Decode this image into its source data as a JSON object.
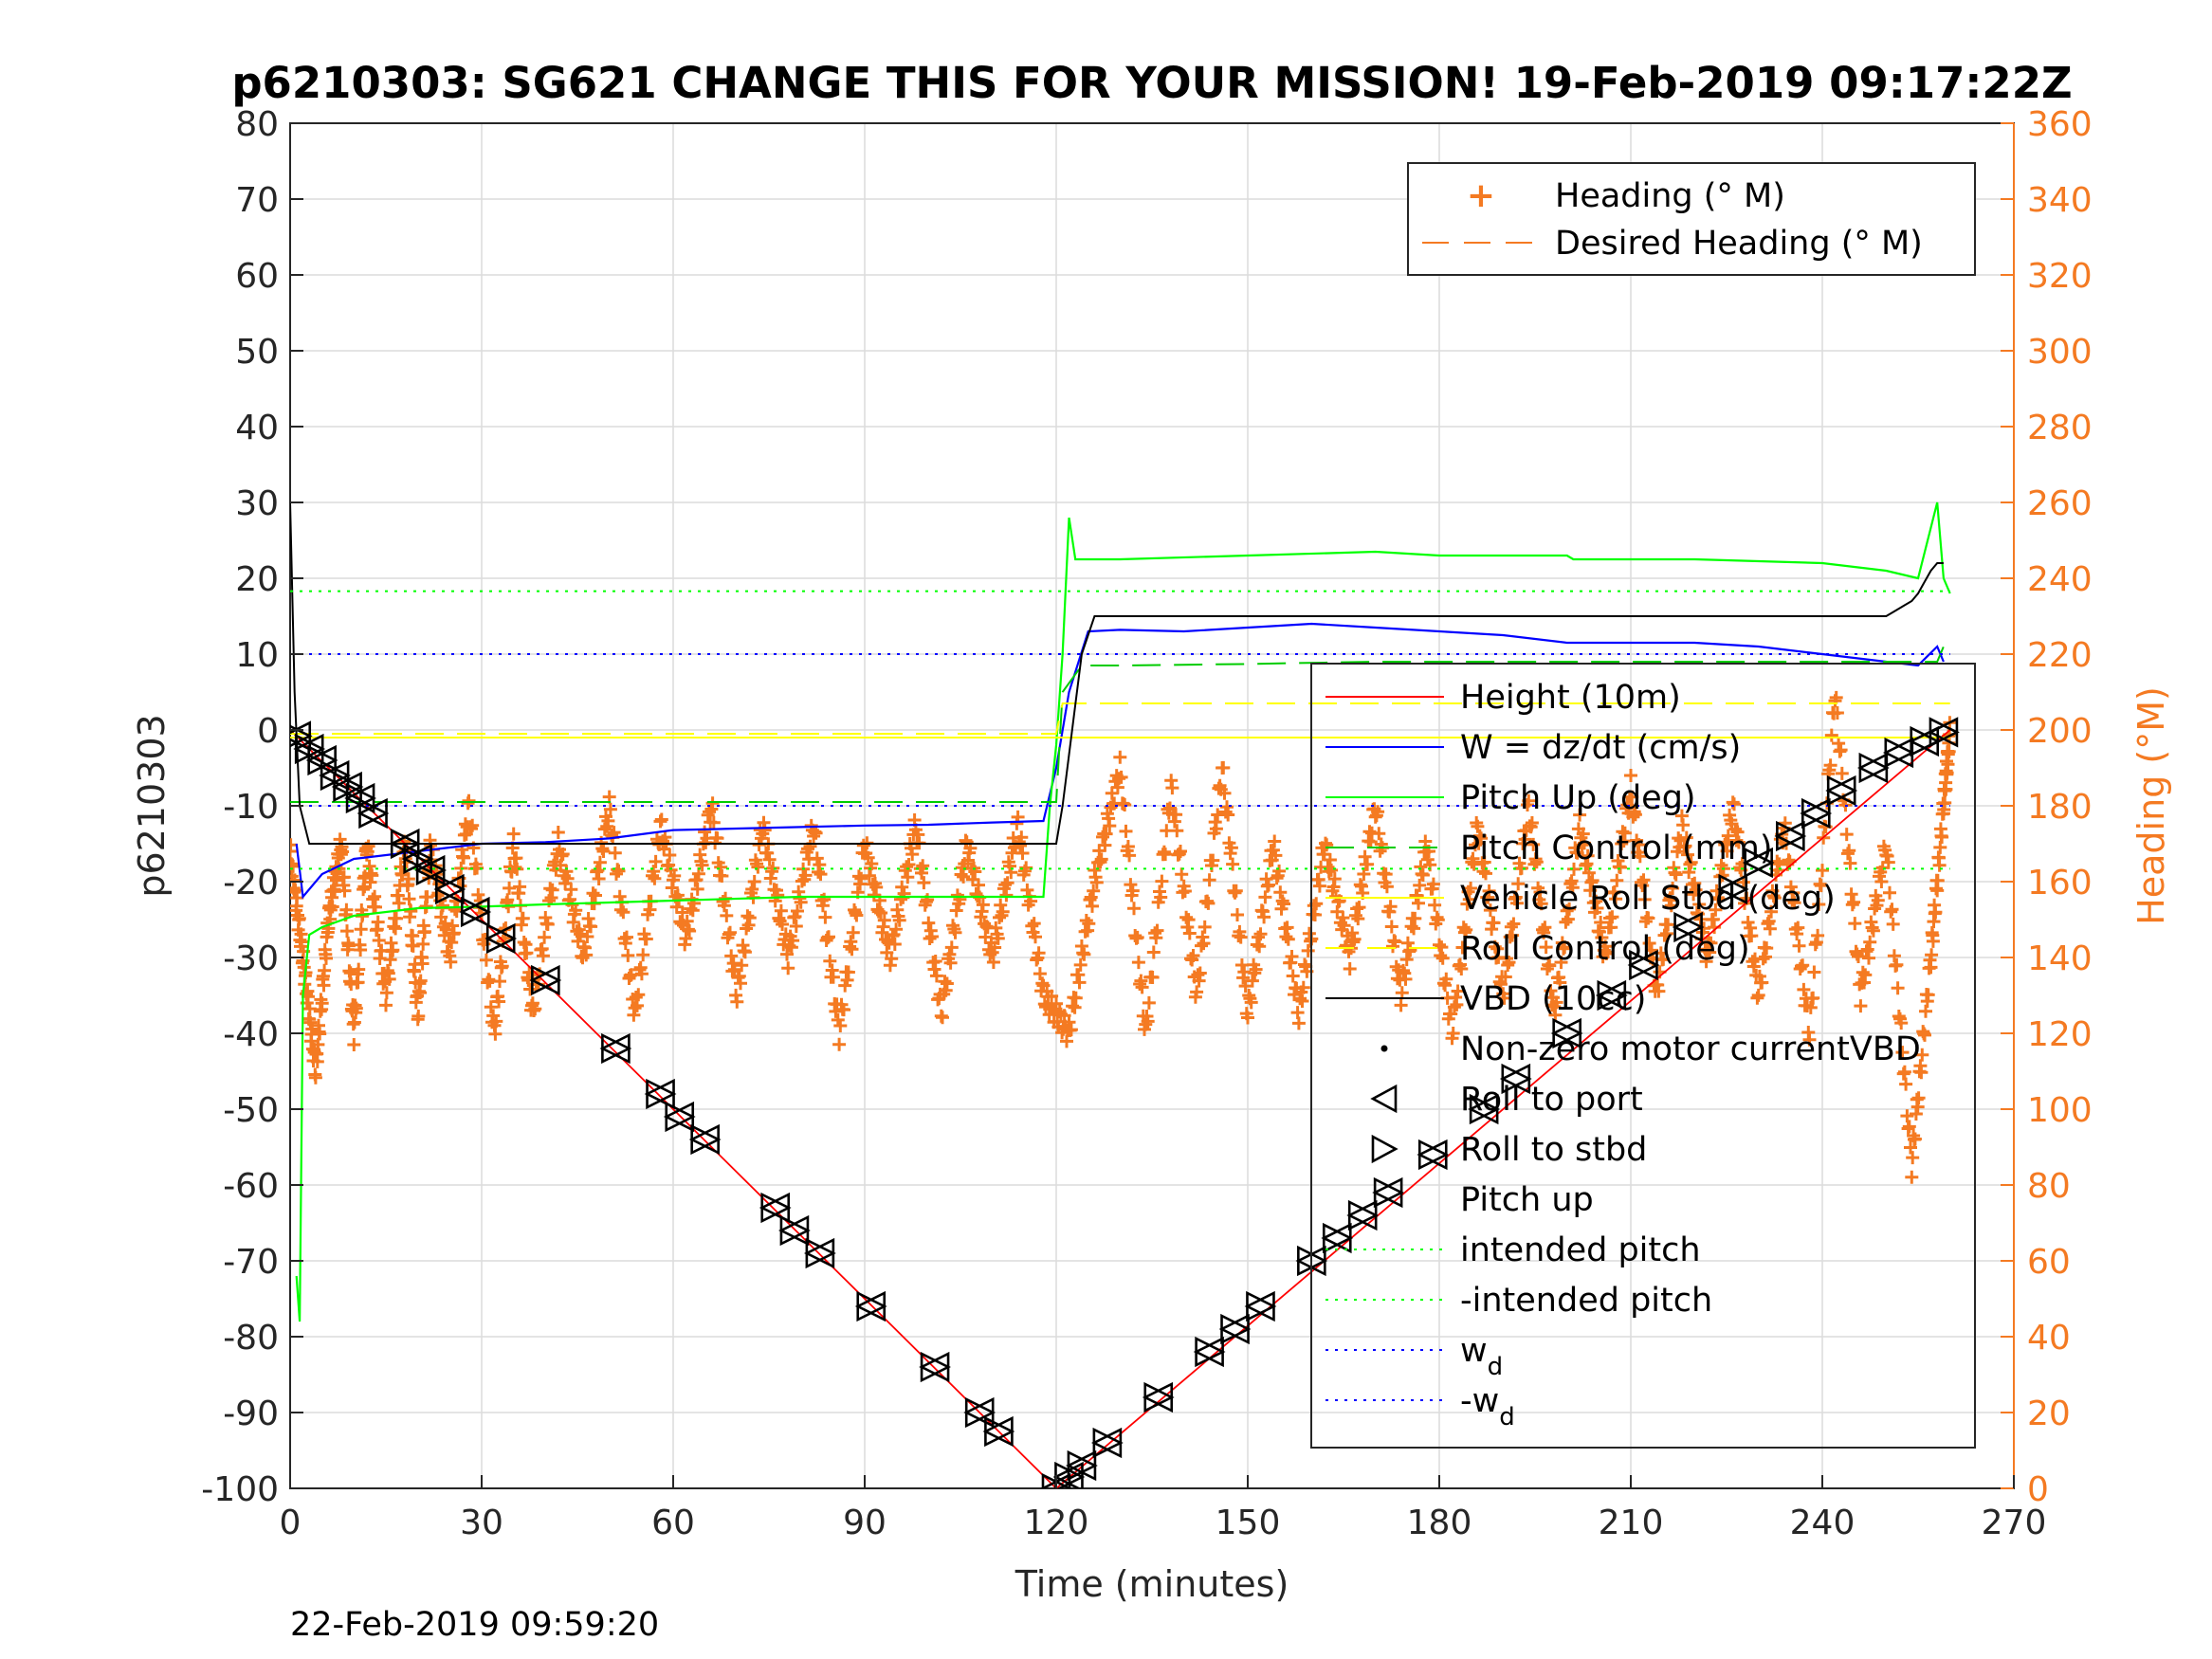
{
  "chart_data": {
    "type": "line",
    "title": "p6210303: SG621 CHANGE THIS FOR YOUR MISSION! 19-Feb-2019 09:17:22Z",
    "xlabel": "Time (minutes)",
    "ylabel": "p6210303",
    "y2label": "Heading (°M)",
    "footer": "22-Feb-2019 09:59:20",
    "xlim": [
      0,
      270
    ],
    "ylim": [
      -100,
      80
    ],
    "y2lim": [
      0,
      360
    ],
    "xticks": [
      "0",
      "30",
      "60",
      "90",
      "120",
      "150",
      "180",
      "210",
      "240",
      "270"
    ],
    "yticks": [
      "80",
      "70",
      "60",
      "50",
      "40",
      "30",
      "20",
      "10",
      "0",
      "-10",
      "-20",
      "-30",
      "-40",
      "-50",
      "-60",
      "-70",
      "-80",
      "-90",
      "-100"
    ],
    "y2ticks": [
      "360",
      "340",
      "320",
      "300",
      "280",
      "260",
      "240",
      "220",
      "200",
      "180",
      "160",
      "140",
      "120",
      "100",
      "80",
      "60",
      "40",
      "20",
      "0"
    ],
    "grid": true,
    "colors": {
      "height": "#ff0000",
      "w": "#0000ff",
      "pitch_up": "#00ff00",
      "pitch_control": "#00cc00",
      "roll": "#ffff00",
      "vbd": "#000000",
      "heading": "#f47a22",
      "intended_pitch": "#00ff00",
      "wd": "#0000ff"
    },
    "legend_right_axis": {
      "position": "top-right",
      "entries": [
        "Heading (° M)",
        "Desired Heading (° M)"
      ]
    },
    "legend_left_axis": {
      "position": "center-right",
      "entries": [
        "Height (10m)",
        "W = dz/dt (cm/s)",
        "Pitch Up (deg)",
        "Pitch Control (mm)",
        "Vehicle Roll Stbd (deg)",
        "Roll Control (deg)",
        "VBD (10cc)",
        "Non-zero motor currentVBD",
        "Roll to port",
        "Roll to stbd",
        "Pitch up",
        "intended pitch",
        "-intended pitch",
        "w",
        "-w"
      ],
      "subscript": "d"
    },
    "series": [
      {
        "name": "Height (10m)",
        "x": [
          0,
          120,
          260
        ],
        "values": [
          0,
          -100,
          0
        ]
      },
      {
        "name": "W = dz/dt (cm/s)",
        "x": [
          1,
          2,
          5,
          10,
          20,
          30,
          40,
          50,
          60,
          70,
          80,
          90,
          100,
          110,
          118,
          120,
          122,
          125,
          130,
          140,
          150,
          160,
          170,
          180,
          190,
          200,
          210,
          220,
          230,
          240,
          250,
          255,
          258,
          259
        ],
        "values": [
          -15,
          -22,
          -19,
          -17,
          -16,
          -15,
          -14.8,
          -14.3,
          -13.2,
          -13,
          -12.8,
          -12.6,
          -12.5,
          -12.2,
          -12,
          -5,
          5,
          13,
          13.2,
          13,
          13.5,
          14,
          13.5,
          13,
          12.5,
          11.5,
          11.5,
          11.5,
          11,
          10,
          9,
          8.5,
          11,
          9
        ]
      },
      {
        "name": "Pitch Up (deg)",
        "x": [
          1,
          1.5,
          2,
          3,
          5,
          10,
          20,
          30,
          40,
          60,
          80,
          100,
          118,
          119,
          120,
          121,
          122,
          123,
          130,
          150,
          170,
          180,
          200,
          201,
          220,
          240,
          250,
          255,
          258,
          259,
          260
        ],
        "values": [
          -72,
          -78,
          -35,
          -27,
          -26,
          -24.5,
          -23.5,
          -23.3,
          -23,
          -22.5,
          -22,
          -22,
          -22,
          -10,
          -2,
          10,
          28,
          22.5,
          22.5,
          23,
          23.5,
          23,
          23,
          22.5,
          22.5,
          22,
          21,
          20,
          30,
          20,
          18
        ]
      },
      {
        "name": "Pitch Control (mm)",
        "x": [
          0,
          120,
          121,
          124,
          130,
          150,
          170,
          200,
          230,
          250,
          258,
          259,
          260
        ],
        "values": [
          -9.5,
          -9.5,
          5,
          8.5,
          8.5,
          8.7,
          9,
          9,
          9,
          9,
          9,
          11,
          10
        ]
      },
      {
        "name": "Vehicle Roll Stbd (deg)",
        "x": [
          0,
          260
        ],
        "values": [
          -1,
          -1
        ]
      },
      {
        "name": "Roll Control (deg)",
        "x": [
          0,
          120,
          121,
          260
        ],
        "values": [
          -0.5,
          -0.5,
          3.5,
          3.5
        ]
      },
      {
        "name": "VBD (10cc)",
        "x": [
          0,
          0.7,
          1.5,
          3,
          120,
          121,
          124,
          126,
          250,
          251,
          252,
          253,
          254,
          255,
          256,
          257,
          258,
          259
        ],
        "values": [
          30,
          5,
          -10,
          -15,
          -15,
          -10,
          10,
          15,
          15,
          15.5,
          16,
          16.5,
          17,
          18,
          19.5,
          21,
          22,
          22
        ]
      },
      {
        "name": "intended pitch",
        "x": [
          0,
          260
        ],
        "values": [
          18.3,
          18.3
        ]
      },
      {
        "name": "-intended pitch",
        "x": [
          0,
          260
        ],
        "values": [
          -18.3,
          -18.3
        ]
      },
      {
        "name": "w",
        "x": [
          0,
          260
        ],
        "values": [
          10,
          10
        ]
      },
      {
        "name": "-w",
        "x": [
          0,
          260
        ],
        "values": [
          -10,
          -10
        ]
      }
    ],
    "roll_markers": {
      "x": [
        1,
        3,
        5,
        7,
        9,
        11,
        13,
        18,
        20,
        22,
        25,
        29,
        33,
        40,
        51,
        58,
        61,
        65,
        76,
        79,
        83,
        91,
        101,
        108,
        111,
        120,
        122,
        124,
        128,
        136,
        144,
        148,
        152,
        160,
        164,
        168,
        172,
        179,
        187,
        192,
        200,
        207,
        212,
        219,
        226,
        230,
        235,
        239,
        243,
        248,
        252,
        256,
        259
      ],
      "values": [
        -0.8,
        -2.5,
        -4,
        -6,
        -7.5,
        -9,
        -11,
        -15,
        -17,
        -18.5,
        -21,
        -24,
        -27.5,
        -33,
        -42,
        -48,
        -51,
        -54,
        -63,
        -66,
        -69,
        -76,
        -84,
        -90,
        -92.5,
        -100,
        -98.5,
        -97,
        -94,
        -88,
        -82,
        -79,
        -76,
        -70,
        -67,
        -64,
        -61,
        -56,
        -50,
        -46,
        -40,
        -35,
        -31,
        -26,
        -21,
        -17.5,
        -14,
        -11,
        -8,
        -5,
        -3,
        -1.5,
        -0.3
      ]
    },
    "heading": {
      "y_axis": "right",
      "oscillation": {
        "x_start": 0,
        "x_end": 260,
        "points": [
          [
            0,
            168
          ],
          [
            2,
            140
          ],
          [
            4,
            110
          ],
          [
            6,
            150
          ],
          [
            8,
            170
          ],
          [
            10,
            120
          ],
          [
            12,
            170
          ],
          [
            15,
            130
          ],
          [
            18,
            170
          ],
          [
            20,
            125
          ],
          [
            22,
            170
          ],
          [
            25,
            140
          ],
          [
            28,
            180
          ],
          [
            32,
            120
          ],
          [
            35,
            170
          ],
          [
            38,
            125
          ],
          [
            42,
            170
          ],
          [
            46,
            140
          ],
          [
            50,
            180
          ],
          [
            54,
            125
          ],
          [
            58,
            175
          ],
          [
            62,
            145
          ],
          [
            66,
            180
          ],
          [
            70,
            130
          ],
          [
            74,
            175
          ],
          [
            78,
            140
          ],
          [
            82,
            175
          ],
          [
            86,
            120
          ],
          [
            90,
            170
          ],
          [
            94,
            140
          ],
          [
            98,
            175
          ],
          [
            102,
            125
          ],
          [
            106,
            170
          ],
          [
            110,
            140
          ],
          [
            114,
            175
          ],
          [
            118,
            130
          ],
          [
            122,
            120
          ],
          [
            126,
            160
          ],
          [
            130,
            190
          ],
          [
            134,
            120
          ],
          [
            138,
            185
          ],
          [
            142,
            130
          ],
          [
            146,
            190
          ],
          [
            150,
            125
          ],
          [
            154,
            170
          ],
          [
            158,
            125
          ],
          [
            162,
            170
          ],
          [
            166,
            140
          ],
          [
            170,
            180
          ],
          [
            174,
            130
          ],
          [
            178,
            170
          ],
          [
            182,
            120
          ],
          [
            186,
            175
          ],
          [
            190,
            130
          ],
          [
            194,
            180
          ],
          [
            198,
            125
          ],
          [
            202,
            175
          ],
          [
            206,
            140
          ],
          [
            210,
            185
          ],
          [
            214,
            130
          ],
          [
            218,
            175
          ],
          [
            222,
            140
          ],
          [
            226,
            180
          ],
          [
            230,
            130
          ],
          [
            234,
            175
          ],
          [
            238,
            120
          ],
          [
            242,
            210
          ],
          [
            246,
            130
          ],
          [
            250,
            170
          ],
          [
            254,
            85
          ],
          [
            257,
            140
          ],
          [
            259,
            180
          ],
          [
            260,
            200
          ]
        ]
      },
      "desired_heading": null
    }
  }
}
